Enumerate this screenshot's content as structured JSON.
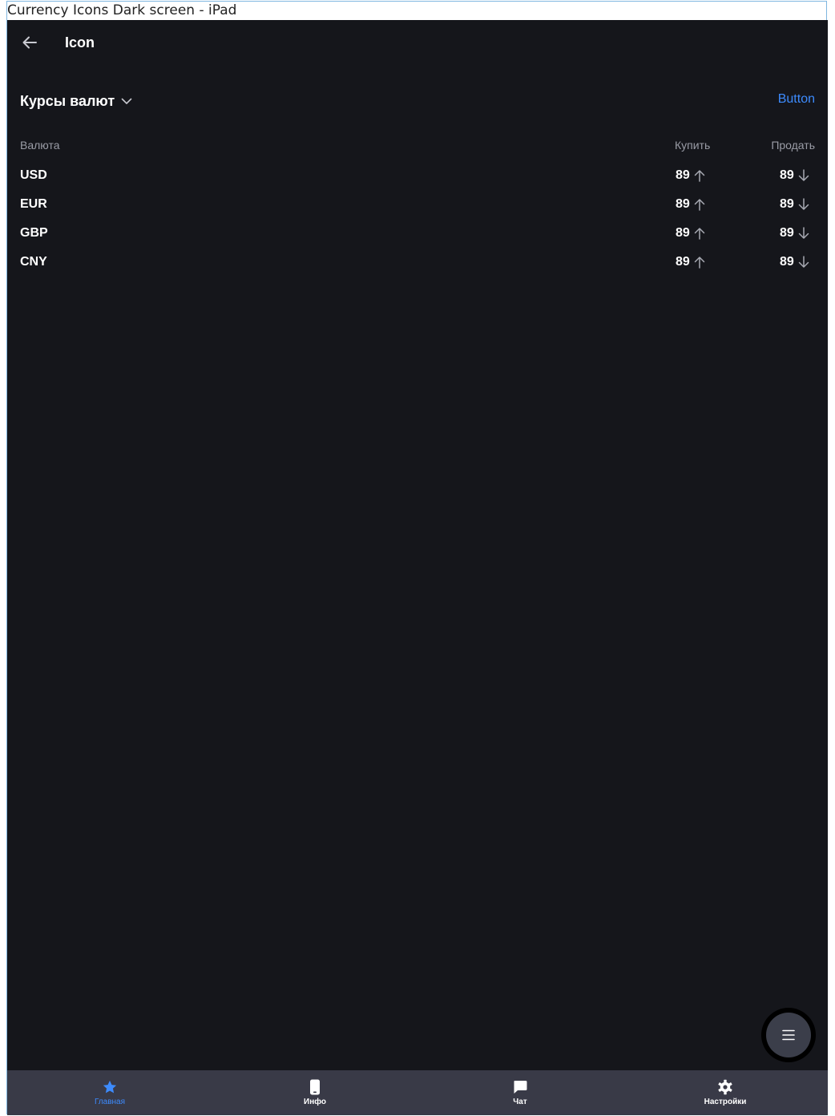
{
  "window": {
    "title": "Currency Icons Dark screen - iPad"
  },
  "topbar": {
    "title": "Icon",
    "back_icon": "arrow-left-icon"
  },
  "section": {
    "title": "Курсы валют",
    "chevron_icon": "chevron-down-icon",
    "action_label": "Button"
  },
  "table": {
    "headers": {
      "currency": "Валюта",
      "buy": "Купить",
      "sell": "Продать"
    },
    "rows": [
      {
        "code": "USD",
        "buy": "89",
        "sell": "89"
      },
      {
        "code": "EUR",
        "buy": "89",
        "sell": "89"
      },
      {
        "code": "GBP",
        "buy": "89",
        "sell": "89"
      },
      {
        "code": "CNY",
        "buy": "89",
        "sell": "89"
      }
    ],
    "buy_trend_icon": "arrow-up-icon",
    "sell_trend_icon": "arrow-down-icon"
  },
  "fab": {
    "icon": "menu-icon"
  },
  "tabbar": {
    "items": [
      {
        "label": "Главная",
        "icon": "star-icon",
        "active": true
      },
      {
        "label": "Инфо",
        "icon": "phone-icon",
        "active": false
      },
      {
        "label": "Чат",
        "icon": "chat-bubble-icon",
        "active": false
      },
      {
        "label": "Настройки",
        "icon": "gear-icon",
        "active": false
      }
    ]
  },
  "colors": {
    "background": "#15161b",
    "accent": "#3d8bfd",
    "tabbar": "#393a47",
    "secondary_text": "#9a9ca6"
  }
}
